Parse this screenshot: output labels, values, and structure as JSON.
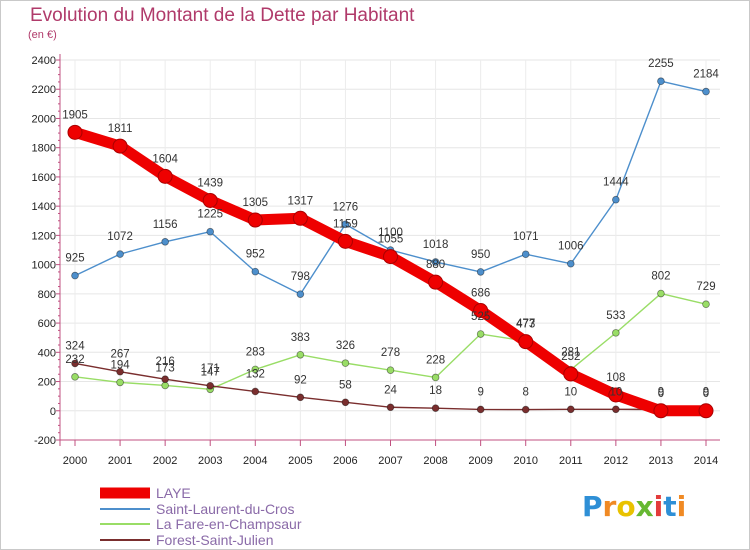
{
  "title": "Evolution du Montant de la Dette par Habitant",
  "unit": "(en €)",
  "logo": "Proxiti",
  "chart_data": {
    "type": "line",
    "categories": [
      "2000",
      "2001",
      "2002",
      "2003",
      "2004",
      "2005",
      "2006",
      "2007",
      "2008",
      "2009",
      "2010",
      "2011",
      "2012",
      "2013",
      "2014"
    ],
    "ylim": [
      -200,
      2400
    ],
    "yticks": [
      -200,
      0,
      200,
      400,
      600,
      800,
      1000,
      1200,
      1400,
      1600,
      1800,
      2000,
      2200,
      2400
    ],
    "grid": true,
    "legend_position": "bottom-left",
    "series": [
      {
        "name": "LAYE",
        "color": "#ee0000",
        "values": [
          1905,
          1811,
          1604,
          1439,
          1305,
          1317,
          1159,
          1055,
          880,
          686,
          473,
          252,
          108,
          0,
          0
        ],
        "labels": [
          "1905",
          "1811",
          "1604",
          "1439",
          "1305",
          "1317",
          "1159",
          "1055",
          "880",
          "686",
          "473",
          "252",
          "108",
          "0",
          "0"
        ]
      },
      {
        "name": "Saint-Laurent-du-Cros",
        "color": "#4d8fcc",
        "values": [
          925,
          1072,
          1156,
          1225,
          952,
          798,
          1276,
          1100,
          1018,
          950,
          1071,
          1006,
          1444,
          2255,
          2184
        ],
        "labels": [
          "925",
          "1072",
          "1156",
          "1225",
          "952",
          "798",
          "1276",
          "1100",
          "1018",
          "950",
          "1071",
          "1006",
          "1444",
          "2255",
          "2184"
        ]
      },
      {
        "name": "La Fare-en-Champsaur",
        "color": "#99dd66",
        "values": [
          232,
          194,
          173,
          147,
          283,
          383,
          326,
          278,
          228,
          525,
          477,
          281,
          533,
          802,
          729
        ],
        "labels": [
          "232",
          "194",
          "173",
          "147",
          "283",
          "383",
          "326",
          "278",
          "228",
          "525",
          "477",
          "281",
          "533",
          "802",
          "729"
        ]
      },
      {
        "name": "Forest-Saint-Julien",
        "color": "#7a2e2e",
        "values": [
          324,
          267,
          216,
          171,
          132,
          92,
          58,
          24,
          18,
          9,
          8,
          10,
          10,
          9,
          9
        ],
        "labels": [
          "324",
          "267",
          "216",
          "171",
          "132",
          "92",
          "58",
          "24",
          "18",
          "9",
          "8",
          "10",
          "10",
          "9",
          "9"
        ]
      }
    ]
  }
}
